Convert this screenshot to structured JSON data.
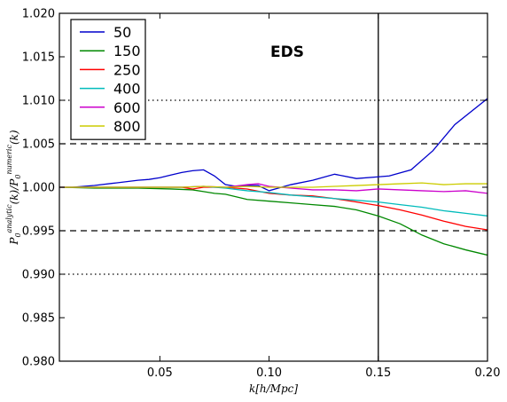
{
  "chart_data": {
    "type": "line",
    "title": "",
    "xlabel": "k[h/Mpc]",
    "ylabel": "P0^analytic(k)/P0^numeric(k)",
    "ylabel_parts": {
      "left_symbol": "P",
      "left_sub": "0",
      "left_sup": "analytic",
      "middle_arg": "(k)/",
      "right_symbol": "P",
      "right_sub": "0",
      "right_sup": "numeric",
      "right_arg": "(k)"
    },
    "xlim": [
      0.004,
      0.2
    ],
    "ylim": [
      0.98,
      1.02
    ],
    "x_ticks": [
      0.05,
      0.1,
      0.15,
      0.2
    ],
    "x_tick_labels": [
      "0.05",
      "0.10",
      "0.15",
      "0.20"
    ],
    "y_ticks": [
      0.98,
      0.985,
      0.99,
      0.995,
      1.0,
      1.005,
      1.01,
      1.015,
      1.02
    ],
    "y_tick_labels": [
      "0.980",
      "0.985",
      "0.990",
      "0.995",
      "1.000",
      "1.005",
      "1.010",
      "1.015",
      "1.020"
    ],
    "grid": false,
    "legend_position": "top-left",
    "annotation": "EDS",
    "vertical_line_x": 0.15,
    "hlines_dashed": [
      1.005,
      0.995
    ],
    "hlines_dotted": [
      1.01,
      0.99
    ],
    "series": [
      {
        "name": "50",
        "color": "#0000cc",
        "x": [
          0.004,
          0.01,
          0.02,
          0.03,
          0.04,
          0.045,
          0.05,
          0.055,
          0.06,
          0.065,
          0.07,
          0.075,
          0.08,
          0.085,
          0.09,
          0.095,
          0.1,
          0.11,
          0.12,
          0.13,
          0.14,
          0.15,
          0.155,
          0.165,
          0.175,
          0.185,
          0.2
        ],
        "y": [
          1.0,
          1.0,
          1.0002,
          1.0005,
          1.0008,
          1.0009,
          1.0011,
          1.0014,
          1.0017,
          1.0019,
          1.002,
          1.0013,
          1.0003,
          1.0001,
          1.0002,
          1.0002,
          0.9996,
          1.0003,
          1.0008,
          1.0015,
          1.001,
          1.0012,
          1.0013,
          1.002,
          1.0042,
          1.0072,
          1.0102
        ]
      },
      {
        "name": "150",
        "color": "#008800",
        "x": [
          0.004,
          0.02,
          0.04,
          0.055,
          0.065,
          0.07,
          0.075,
          0.08,
          0.09,
          0.1,
          0.11,
          0.12,
          0.13,
          0.14,
          0.15,
          0.16,
          0.17,
          0.18,
          0.19,
          0.2
        ],
        "y": [
          1.0,
          0.9999,
          0.9999,
          0.9998,
          0.9997,
          0.9995,
          0.9993,
          0.9992,
          0.9986,
          0.9984,
          0.9982,
          0.998,
          0.9978,
          0.9974,
          0.9967,
          0.9958,
          0.9945,
          0.9935,
          0.9928,
          0.9922
        ]
      },
      {
        "name": "250",
        "color": "#ff0000",
        "x": [
          0.004,
          0.02,
          0.04,
          0.06,
          0.065,
          0.07,
          0.08,
          0.09,
          0.1,
          0.11,
          0.12,
          0.13,
          0.14,
          0.15,
          0.16,
          0.17,
          0.18,
          0.19,
          0.2
        ],
        "y": [
          1.0,
          1.0,
          1.0,
          1.0,
          0.9998,
          1.0,
          1.0,
          0.9998,
          0.9993,
          0.9991,
          0.999,
          0.9987,
          0.9983,
          0.9979,
          0.9974,
          0.9968,
          0.9961,
          0.9955,
          0.9951
        ]
      },
      {
        "name": "400",
        "color": "#00bbbb",
        "x": [
          0.004,
          0.02,
          0.04,
          0.06,
          0.07,
          0.08,
          0.09,
          0.1,
          0.11,
          0.12,
          0.13,
          0.14,
          0.15,
          0.16,
          0.17,
          0.18,
          0.19,
          0.2
        ],
        "y": [
          1.0,
          1.0,
          1.0,
          1.0,
          1.0001,
          0.9999,
          0.9996,
          0.9994,
          0.9991,
          0.9989,
          0.9987,
          0.9985,
          0.9983,
          0.998,
          0.9977,
          0.9973,
          0.997,
          0.9967
        ]
      },
      {
        "name": "600",
        "color": "#cc00cc",
        "x": [
          0.004,
          0.02,
          0.04,
          0.06,
          0.07,
          0.08,
          0.09,
          0.095,
          0.1,
          0.11,
          0.12,
          0.13,
          0.14,
          0.15,
          0.16,
          0.17,
          0.18,
          0.19,
          0.2
        ],
        "y": [
          1.0,
          1.0,
          1.0,
          1.0,
          1.0001,
          1.0,
          1.0003,
          1.0004,
          1.0001,
          0.9999,
          0.9997,
          0.9997,
          0.9996,
          0.9998,
          0.9997,
          0.9996,
          0.9995,
          0.9996,
          0.9993
        ]
      },
      {
        "name": "800",
        "color": "#cccc00",
        "x": [
          0.004,
          0.02,
          0.04,
          0.06,
          0.07,
          0.08,
          0.09,
          0.1,
          0.11,
          0.12,
          0.13,
          0.14,
          0.15,
          0.16,
          0.17,
          0.18,
          0.19,
          0.2
        ],
        "y": [
          1.0,
          1.0,
          1.0,
          1.0,
          1.0001,
          1.0,
          1.0001,
          1.0,
          1.0,
          1.0,
          1.0001,
          1.0002,
          1.0003,
          1.0004,
          1.0005,
          1.0003,
          1.0004,
          1.0004
        ]
      }
    ]
  }
}
